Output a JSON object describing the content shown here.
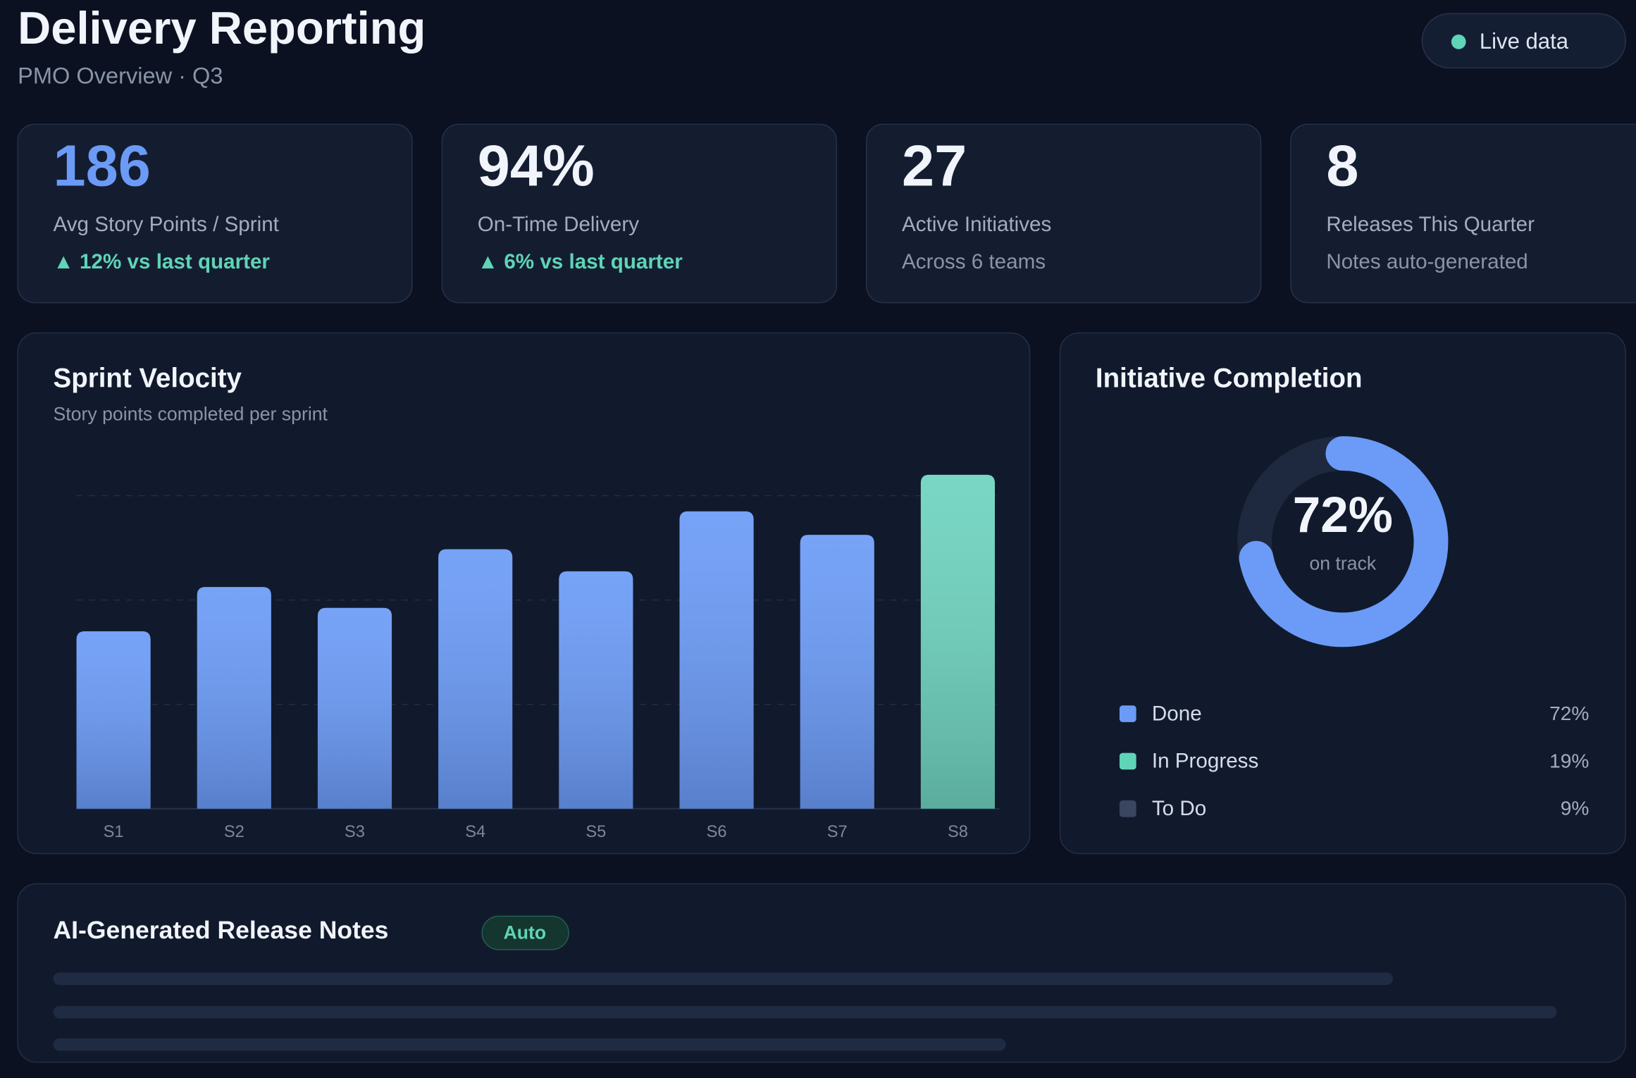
{
  "header": {
    "title": "Delivery Reporting",
    "subtitle": "PMO Overview · Q3",
    "status": "Live data"
  },
  "kpis": [
    {
      "value": "186",
      "label": "Avg Story Points / Sprint",
      "note": "▲ 12% vs last quarter"
    },
    {
      "value": "94%",
      "label": "On-Time Delivery",
      "note": "▲ 6% vs last quarter"
    },
    {
      "value": "27",
      "label": "Active Initiatives",
      "note": "Across 6 teams"
    },
    {
      "value": "8",
      "label": "Releases This Quarter",
      "note": "Notes auto-generated"
    }
  ],
  "chart_data": [
    {
      "type": "bar",
      "title": "Sprint Velocity",
      "subtitle": "Story points completed per sprint",
      "categories": [
        "S1",
        "S2",
        "S3",
        "S4",
        "S5",
        "S6",
        "S7",
        "S8"
      ],
      "values": [
        136,
        170,
        154,
        199,
        182,
        228,
        210,
        256
      ],
      "colors": [
        "#6b9bf7",
        "#6b9bf7",
        "#6b9bf7",
        "#6b9bf7",
        "#6b9bf7",
        "#6b9bf7",
        "#6b9bf7",
        "#6ed3bf"
      ],
      "ylim": [
        0,
        320
      ],
      "grid": true
    },
    {
      "type": "pie",
      "title": "Initiative Completion",
      "center_label": "on track",
      "categories": [
        "Done",
        "In Progress",
        "To Do"
      ],
      "values": [
        72,
        19,
        9
      ],
      "value_labels": [
        "72%",
        "19%",
        "9%"
      ],
      "colors": [
        "#6b9bf7",
        "#5fd4b6",
        "#3a4660"
      ],
      "track_color": "#1e2940"
    }
  ],
  "release_notes": {
    "title": "AI-Generated Release Notes",
    "badge": "Auto"
  }
}
